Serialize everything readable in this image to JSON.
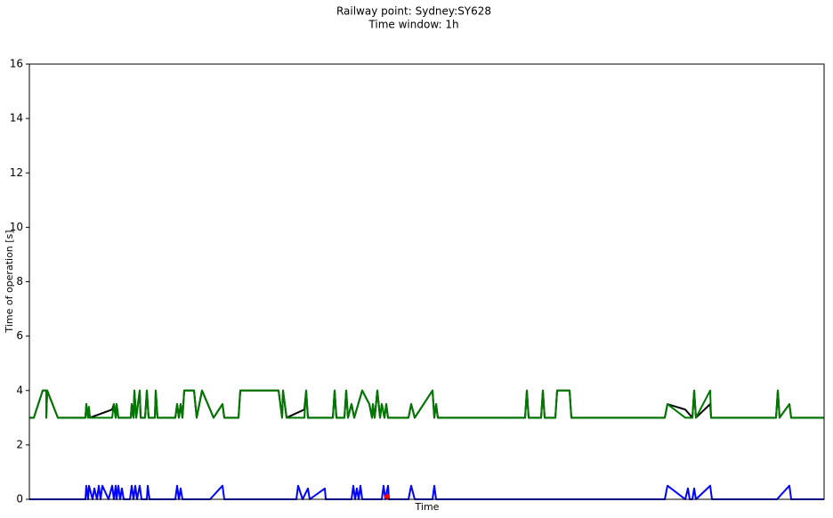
{
  "chart_data": {
    "type": "line",
    "title": "Railway point: Sydney:SY628",
    "subtitle": "Time window: 1h",
    "x_label": "Time",
    "y_label": "Time of operation [s]",
    "xlim": [
      0,
      893
    ],
    "ylim": [
      0,
      16
    ],
    "yticks": [
      0,
      2,
      4,
      6,
      8,
      10,
      12,
      14,
      16
    ],
    "series": [
      {
        "color": "#000000",
        "type": "line",
        "x": [
          0,
          5,
          15,
          19,
          19,
          20,
          32,
          63,
          64,
          66,
          67,
          68,
          93,
          95,
          97,
          98,
          100,
          114,
          115,
          117,
          118,
          120,
          122,
          124,
          125,
          130,
          132,
          134,
          141,
          142,
          144,
          164,
          166,
          168,
          170,
          172,
          174,
          185,
          188,
          194,
          207,
          217,
          219,
          235,
          237,
          280,
          284,
          285,
          289,
          309,
          311,
          313,
          341,
          343,
          345,
          354,
          356,
          358,
          362,
          365,
          374,
          382,
          385,
          386,
          388,
          391,
          394,
          396,
          399,
          401,
          403,
          426,
          429,
          433,
          453,
          455,
          457,
          459,
          557,
          559,
          561,
          575,
          577,
          579,
          591,
          593,
          607,
          609,
          714,
          717,
          737,
          745,
          747,
          749,
          765,
          766,
          839,
          841,
          843,
          854,
          856,
          893
        ],
        "values": [
          3,
          3,
          4,
          4,
          3,
          4,
          3,
          3,
          3.5,
          3,
          3.3,
          3,
          3.3,
          3.5,
          3,
          3.5,
          3,
          3,
          3.5,
          3,
          4,
          3,
          3.5,
          4,
          3,
          3,
          4,
          3,
          3,
          4,
          3,
          3,
          3.5,
          3,
          3.5,
          3,
          4,
          4,
          3,
          4,
          3,
          3.5,
          3,
          3,
          4,
          4,
          3,
          4,
          3,
          3.3,
          4,
          3,
          3,
          4,
          3,
          3,
          4,
          3,
          3.5,
          3,
          4,
          3.5,
          3,
          3.5,
          3,
          4,
          3,
          3.5,
          3,
          3.5,
          3,
          3,
          3.5,
          3,
          4,
          3,
          3.5,
          3,
          3,
          4,
          3,
          3,
          4,
          3,
          3,
          4,
          4,
          3,
          3,
          3.5,
          3.3,
          3,
          4,
          3,
          3.5,
          3,
          3,
          4,
          3,
          3.5,
          3,
          3
        ]
      },
      {
        "color": "#007800",
        "type": "line",
        "x": [
          0,
          5,
          15,
          19,
          19,
          20,
          32,
          63,
          64,
          66,
          67,
          68,
          93,
          95,
          97,
          98,
          100,
          114,
          115,
          117,
          118,
          120,
          122,
          124,
          125,
          130,
          132,
          134,
          141,
          142,
          144,
          164,
          166,
          168,
          170,
          172,
          174,
          185,
          188,
          194,
          207,
          217,
          219,
          235,
          237,
          280,
          284,
          285,
          289,
          309,
          311,
          313,
          341,
          343,
          345,
          354,
          356,
          358,
          362,
          365,
          374,
          382,
          385,
          386,
          388,
          391,
          394,
          396,
          399,
          401,
          403,
          426,
          429,
          433,
          453,
          455,
          457,
          459,
          557,
          559,
          561,
          575,
          577,
          579,
          591,
          593,
          607,
          609,
          714,
          717,
          737,
          745,
          747,
          749,
          765,
          766,
          839,
          841,
          843,
          854,
          856,
          893
        ],
        "values": [
          3,
          3,
          4,
          4,
          3,
          4,
          3,
          3,
          3.5,
          3,
          3.4,
          3,
          3,
          3.5,
          3,
          3.5,
          3,
          3,
          3.5,
          3,
          4,
          3,
          3.5,
          4,
          3,
          3,
          4,
          3,
          3,
          4,
          3,
          3,
          3.5,
          3,
          3.5,
          3,
          4,
          4,
          3,
          4,
          3,
          3.5,
          3,
          3,
          4,
          4,
          3,
          4,
          3,
          3,
          4,
          3,
          3,
          4,
          3,
          3,
          4,
          3,
          3.5,
          3,
          4,
          3.5,
          3,
          3.5,
          3,
          4,
          3,
          3.5,
          3,
          3.5,
          3,
          3,
          3.5,
          3,
          4,
          3,
          3.5,
          3,
          3,
          4,
          3,
          3,
          4,
          3,
          3,
          4,
          4,
          3,
          3,
          3.5,
          3,
          3,
          4,
          3,
          4,
          3,
          3,
          4,
          3,
          3.5,
          3,
          3
        ]
      },
      {
        "color": "#0000ff",
        "type": "line",
        "x": [
          0,
          63,
          64,
          66,
          67,
          71,
          73,
          76,
          78,
          80,
          82,
          89,
          93,
          95,
          97,
          98,
          100,
          102,
          104,
          106,
          113,
          115,
          117,
          119,
          121,
          124,
          126,
          132,
          133,
          135,
          164,
          166,
          168,
          170,
          172,
          203,
          217,
          219,
          300,
          302,
          307,
          313,
          315,
          332,
          333,
          362,
          364,
          366,
          368,
          370,
          372,
          374,
          396,
          398,
          400,
          403,
          404,
          426,
          429,
          433,
          453,
          455,
          457,
          714,
          717,
          737,
          740,
          742,
          745,
          747,
          749,
          765,
          767,
          840,
          854,
          856,
          893
        ],
        "values": [
          0,
          0,
          0.5,
          0,
          0.5,
          0,
          0.4,
          0,
          0.5,
          0,
          0.5,
          0,
          0.5,
          0,
          0.5,
          0,
          0.5,
          0,
          0.4,
          0,
          0,
          0.5,
          0,
          0.5,
          0,
          0.5,
          0,
          0,
          0.5,
          0,
          0,
          0.5,
          0,
          0.4,
          0,
          0,
          0.5,
          0,
          0,
          0.5,
          0,
          0.4,
          0,
          0.4,
          0,
          0,
          0.5,
          0,
          0.4,
          0,
          0.5,
          0,
          0,
          0.5,
          0,
          0.5,
          0,
          0,
          0.5,
          0,
          0,
          0.5,
          0,
          0,
          0.5,
          0,
          0.4,
          0,
          0,
          0.4,
          0,
          0.5,
          0,
          0,
          0.5,
          0,
          0
        ]
      },
      {
        "color": "#ff0000",
        "type": "scatter",
        "x": [
          402
        ],
        "values": [
          0.1
        ]
      }
    ]
  }
}
